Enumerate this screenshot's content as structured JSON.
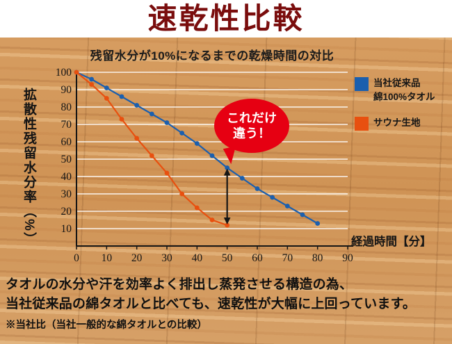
{
  "title": "速乾性比較",
  "subtitle": "残留水分が10%になるまでの乾燥時間の対比",
  "y_axis_label": "拡散性残留水分率（%）",
  "x_axis_label": "経過時間【分】",
  "colors": {
    "title": "#7a0d0d",
    "grid": "#ffffff",
    "axis": "#151515",
    "background_wood": "#d09257"
  },
  "legend": {
    "items": [
      {
        "line1": "当社従来品",
        "line2": "綿100%タオル",
        "color": "#1b5fae"
      },
      {
        "line1": "サウナ生地",
        "line2": "",
        "color": "#e8500f"
      }
    ]
  },
  "callout": {
    "line1": "これだけ",
    "line2": "違う！",
    "color": "#e60012"
  },
  "footer": {
    "line1": "タオルの水分や汗を効率よく排出し蒸発させる構造の為、",
    "line2": "当社従来品の綿タオルと比べても、速乾性が大幅に上回っています。",
    "note": "※当社比（当社一般的な綿タオルとの比較）"
  },
  "chart_data": {
    "type": "line",
    "title": "残留水分が10%になるまでの乾燥時間の対比",
    "xlabel": "経過時間【分】",
    "ylabel": "拡散性残留水分率（%）",
    "xlim": [
      0,
      90
    ],
    "ylim": [
      0,
      100
    ],
    "x_ticks": [
      0,
      10,
      20,
      30,
      40,
      50,
      60,
      70,
      80,
      90
    ],
    "y_ticks": [
      10,
      20,
      30,
      40,
      50,
      60,
      70,
      80,
      90,
      100
    ],
    "grid": "horizontal-white",
    "legend_position": "right",
    "series": [
      {
        "name": "当社従来品 綿100%タオル",
        "color": "#1b5fae",
        "x": [
          0,
          5,
          10,
          15,
          20,
          25,
          30,
          35,
          40,
          45,
          50,
          55,
          60,
          65,
          70,
          75,
          80
        ],
        "values": [
          100,
          96,
          91,
          86,
          81,
          76,
          71,
          65,
          59,
          52,
          45,
          39,
          33,
          28,
          23,
          18,
          13
        ]
      },
      {
        "name": "サウナ生地",
        "color": "#e8500f",
        "x": [
          0,
          5,
          10,
          15,
          20,
          25,
          30,
          35,
          40,
          45,
          50
        ],
        "values": [
          100,
          93,
          85,
          73,
          62,
          52,
          42,
          30,
          22,
          15,
          12
        ]
      }
    ],
    "annotation_arrow": {
      "x": 50,
      "from": 12,
      "to": 45
    }
  }
}
